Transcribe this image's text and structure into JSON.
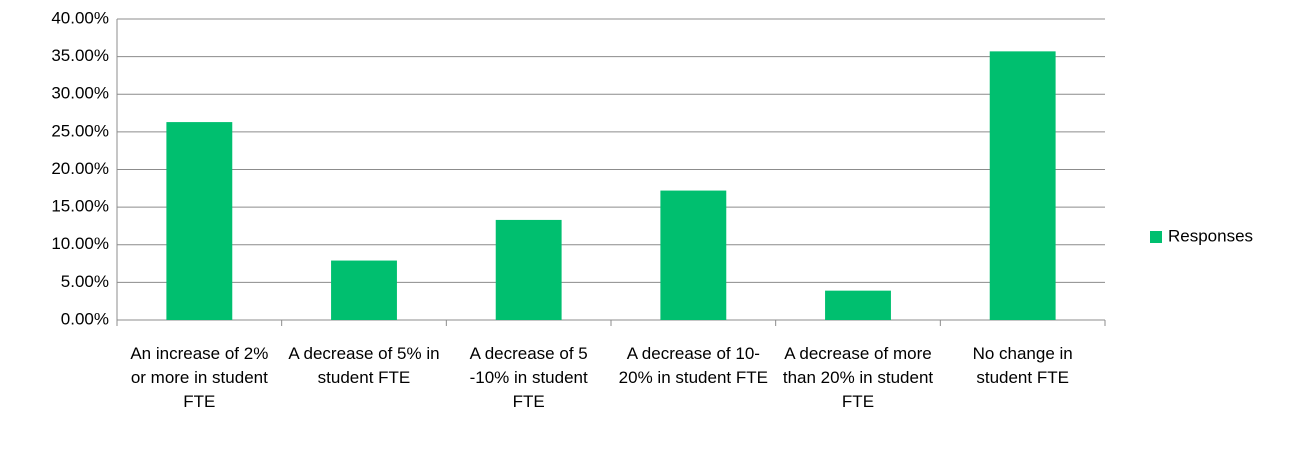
{
  "chart_data": {
    "type": "bar",
    "categories": [
      "An increase of 2% or more in student FTE",
      "A decrease of 5% in student FTE",
      "A decrease of 5 -10% in student FTE",
      "A decrease of 10-20% in student FTE",
      "A decrease of more than 20% in student FTE",
      "No change in student FTE"
    ],
    "series": [
      {
        "name": "Responses",
        "color": "#00bf6f",
        "values": [
          26.3,
          7.9,
          13.3,
          17.2,
          3.9,
          35.7
        ]
      }
    ],
    "ylim": [
      0,
      40
    ],
    "yticks": [
      {
        "value": 0,
        "label": "0.00%"
      },
      {
        "value": 5,
        "label": "5.00%"
      },
      {
        "value": 10,
        "label": "10.00%"
      },
      {
        "value": 15,
        "label": "15.00%"
      },
      {
        "value": 20,
        "label": "20.00%"
      },
      {
        "value": 25,
        "label": "25.00%"
      },
      {
        "value": 30,
        "label": "30.00%"
      },
      {
        "value": 35,
        "label": "35.00%"
      },
      {
        "value": 40,
        "label": "40.00%"
      }
    ],
    "grid": true,
    "legend": "right"
  }
}
